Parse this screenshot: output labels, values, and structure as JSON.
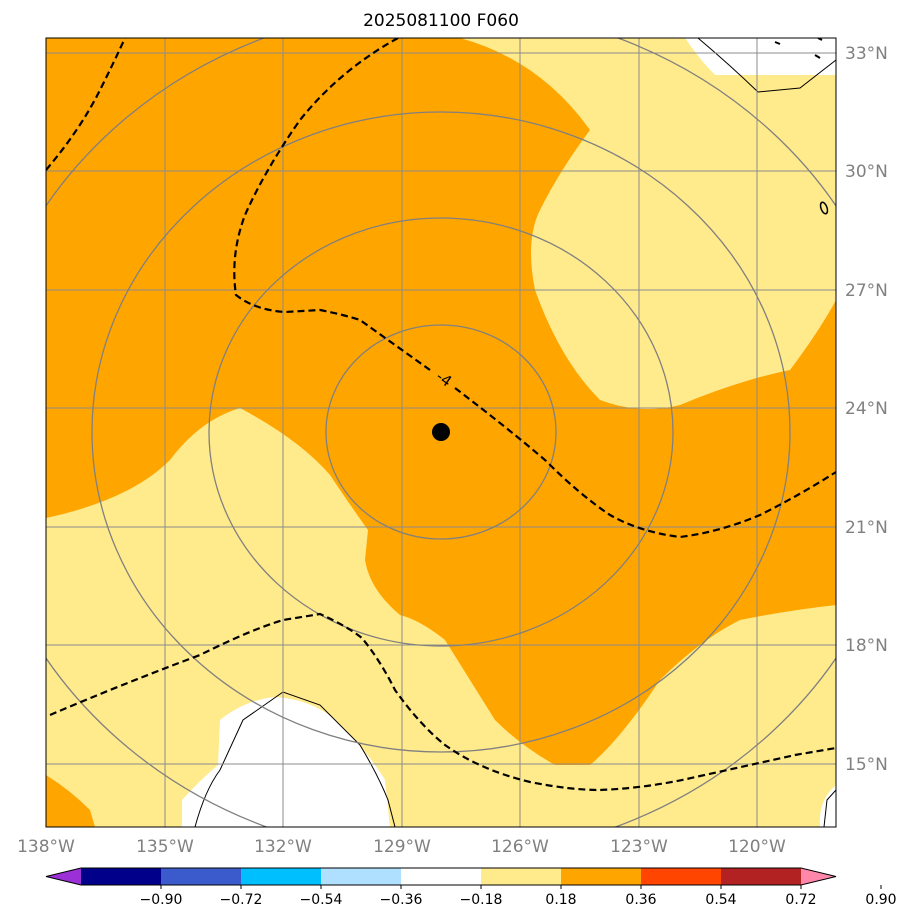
{
  "title": "2025081100 F060",
  "colors": {
    "fill_light": "#ffea8c",
    "fill_orange": "#ffa500",
    "background": "#ffffff",
    "grid": "#8c8c8c",
    "contour": "#000000"
  },
  "map": {
    "lon_labels": [
      "138°W",
      "135°W",
      "132°W",
      "129°W",
      "126°W",
      "123°W",
      "120°W"
    ],
    "lat_labels": [
      "33°N",
      "30°N",
      "27°N",
      "24°N",
      "21°N",
      "18°N",
      "15°N"
    ],
    "contour_label": "-4",
    "center_marker": "storm-center"
  },
  "colorbar": {
    "ticks": [
      "−0.90",
      "−0.72",
      "−0.54",
      "−0.36",
      "−0.18",
      "0.18",
      "0.36",
      "0.54",
      "0.72",
      "0.90"
    ],
    "colors": [
      "#9a30d6",
      "#00008b",
      "#3b5bcc",
      "#00bfff",
      "#b0e0ff",
      "#ffffff",
      "#ffea8c",
      "#ffa500",
      "#ff4500",
      "#b22222",
      "#ff88aa"
    ]
  }
}
